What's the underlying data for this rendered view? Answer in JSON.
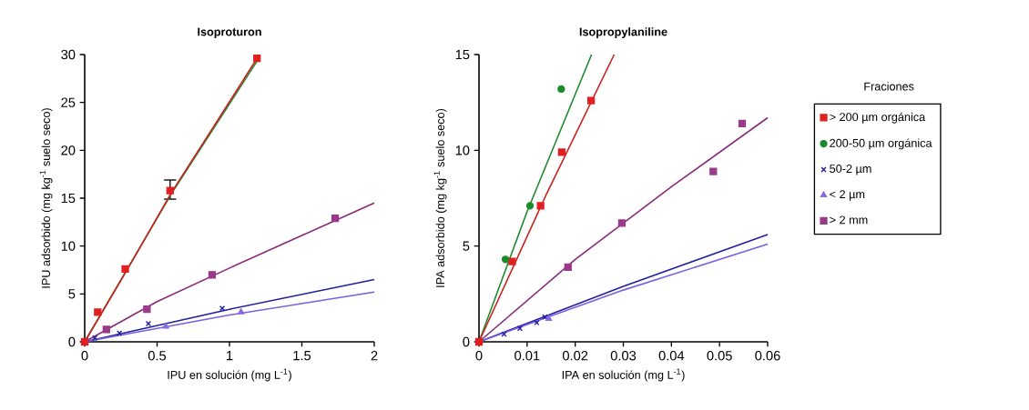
{
  "chart_data": [
    {
      "type": "scatter",
      "title": "Isoproturon",
      "xlabel": "IPU en solución (mg L$^{-1}$)",
      "ylabel": "IPU adsorbido (mg kg$^{-1}$ suelo seco)",
      "xlim": [
        0,
        2
      ],
      "ylim": [
        0,
        30
      ],
      "xticks": [
        0,
        0.5,
        1,
        1.5,
        2
      ],
      "yticks": [
        0,
        5,
        10,
        15,
        20,
        25,
        30
      ],
      "grid": false,
      "legend": false,
      "series": [
        {
          "marker": "square",
          "color": "#e02020",
          "x": [
            0,
            0.09,
            0.28,
            0.59,
            1.19
          ],
          "values": [
            0,
            3.1,
            7.6,
            15.8,
            29.6
          ],
          "errors": [
            null,
            null,
            null,
            [
              14.9,
              16.9
            ],
            null
          ]
        },
        {
          "marker": "square",
          "color": "#9a3a8a",
          "x": [
            0.15,
            0.43,
            0.88,
            1.73
          ],
          "values": [
            1.3,
            3.4,
            7.0,
            12.9
          ]
        },
        {
          "marker": "cross",
          "color": "#1a1aa0",
          "x": [
            0.07,
            0.24,
            0.44,
            0.95
          ],
          "values": [
            0.4,
            0.9,
            1.9,
            3.5
          ]
        },
        {
          "marker": "triangle",
          "color": "#8a6ae0",
          "x": [
            0.56,
            1.08
          ],
          "values": [
            1.6,
            3.1
          ]
        },
        {
          "type": "line",
          "marker": "none",
          "color": "#208a30",
          "x": [
            0,
            0.6,
            1.19
          ],
          "values": [
            0,
            15.5,
            29.3
          ]
        },
        {
          "type": "line",
          "marker": "none",
          "color": "#d02020",
          "x": [
            0,
            0.3,
            0.6,
            0.9,
            1.19
          ],
          "values": [
            0,
            7.7,
            15.6,
            22.7,
            29.6
          ]
        },
        {
          "type": "line",
          "marker": "none",
          "color": "#8a2a7a",
          "x": [
            0,
            0.5,
            1,
            1.5,
            2
          ],
          "values": [
            0,
            4.2,
            7.7,
            11.1,
            14.5
          ]
        },
        {
          "type": "line",
          "marker": "none",
          "color": "#2020a0",
          "x": [
            0,
            1,
            2
          ],
          "values": [
            0,
            3.4,
            6.5
          ]
        },
        {
          "type": "line",
          "marker": "none",
          "color": "#7a60e0",
          "x": [
            0,
            1,
            2
          ],
          "values": [
            0,
            2.8,
            5.2
          ]
        }
      ]
    },
    {
      "type": "scatter",
      "title": "Isopropylaniline",
      "xlabel": "IPA en solución (mg L$^{-1}$)",
      "ylabel": "IPA adsorbido (mg kg$^{-1}$ suelo seco)",
      "xlim": [
        0,
        0.06
      ],
      "ylim": [
        0,
        15
      ],
      "xticks": [
        0,
        0.01,
        0.02,
        0.03,
        0.04,
        0.05,
        0.06
      ],
      "yticks": [
        0,
        5,
        10,
        15
      ],
      "grid": false,
      "legend": "right",
      "legend_title": "Fraciones",
      "series": [
        {
          "name": "> 200 µm orgánica",
          "marker": "square",
          "color": "#e02020",
          "x": [
            0,
            0.0069,
            0.0128,
            0.0172,
            0.0233
          ],
          "values": [
            0,
            4.2,
            7.1,
            9.9,
            12.6
          ]
        },
        {
          "name": "200-50 µm orgánica",
          "marker": "circle",
          "color": "#1a8a2a",
          "x": [
            0.0055,
            0.0106,
            0.0171
          ],
          "values": [
            4.3,
            7.1,
            13.2
          ]
        },
        {
          "name": "50-2 µm",
          "marker": "cross",
          "color": "#1a1aa0",
          "x": [
            0.0052,
            0.0085,
            0.012,
            0.0137
          ],
          "values": [
            0.4,
            0.7,
            1.0,
            1.3
          ]
        },
        {
          "name": "< 2 µm",
          "marker": "triangle",
          "color": "#8a6ae0",
          "x": [
            0.0145
          ],
          "values": [
            1.2
          ]
        },
        {
          "name": "> 2 mm",
          "marker": "square",
          "color": "#9a3a8a",
          "x": [
            0.0185,
            0.0297,
            0.0487,
            0.0547
          ],
          "values": [
            3.9,
            6.2,
            8.9,
            11.4
          ]
        },
        {
          "type": "line",
          "marker": "none",
          "color": "#208a30",
          "x": [
            0,
            0.01,
            0.0234
          ],
          "values": [
            0,
            6.8,
            15
          ]
        },
        {
          "type": "line",
          "marker": "none",
          "color": "#d02020",
          "x": [
            0,
            0.014,
            0.0281
          ],
          "values": [
            0,
            7.7,
            15
          ]
        },
        {
          "type": "line",
          "marker": "none",
          "color": "#8a2a7a",
          "x": [
            0,
            0.02,
            0.04,
            0.06
          ],
          "values": [
            0,
            4.3,
            8.1,
            11.7
          ]
        },
        {
          "type": "line",
          "marker": "none",
          "color": "#2020a0",
          "x": [
            0,
            0.03,
            0.06
          ],
          "values": [
            0,
            2.9,
            5.6
          ]
        },
        {
          "type": "line",
          "marker": "none",
          "color": "#7a60e0",
          "x": [
            0,
            0.03,
            0.06
          ],
          "values": [
            0,
            2.7,
            5.1
          ]
        }
      ]
    }
  ]
}
